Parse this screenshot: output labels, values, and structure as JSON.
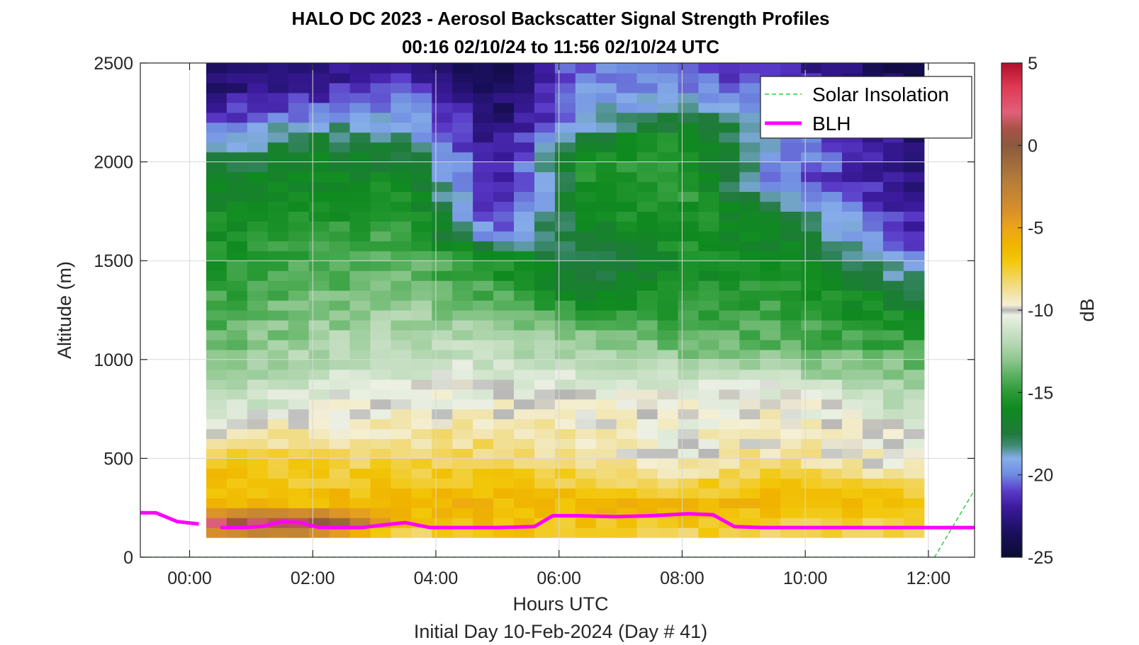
{
  "chart_data": {
    "type": "heatmap",
    "title": "HALO DC 2023 - Aerosol Backscatter Signal Strength Profiles",
    "subtitle": "00:16 02/10/24 to 11:56 02/10/24  UTC",
    "xlabel": "Hours UTC",
    "xlabel2": "Initial Day 10-Feb-2024 (Day # 41)",
    "ylabel": "Altitude (m)",
    "colorbar_label": "dB",
    "xlim": [
      -0.8,
      12.75
    ],
    "ylim": [
      0,
      2500
    ],
    "x_ticks": [
      {
        "value": 0,
        "label": "00:00"
      },
      {
        "value": 2,
        "label": "02:00"
      },
      {
        "value": 4,
        "label": "04:00"
      },
      {
        "value": 6,
        "label": "06:00"
      },
      {
        "value": 8,
        "label": "08:00"
      },
      {
        "value": 10,
        "label": "10:00"
      },
      {
        "value": 12,
        "label": "12:00"
      }
    ],
    "y_ticks": [
      {
        "value": 0,
        "label": "0"
      },
      {
        "value": 500,
        "label": "500"
      },
      {
        "value": 1000,
        "label": "1000"
      },
      {
        "value": 1500,
        "label": "1500"
      },
      {
        "value": 2000,
        "label": "2000"
      },
      {
        "value": 2500,
        "label": "2500"
      }
    ],
    "clim": [
      -25,
      5
    ],
    "c_ticks": [
      {
        "value": 5,
        "label": "5"
      },
      {
        "value": 0,
        "label": "0"
      },
      {
        "value": -5,
        "label": "-5"
      },
      {
        "value": -10,
        "label": "-10"
      },
      {
        "value": -15,
        "label": "-15"
      },
      {
        "value": -20,
        "label": "-20"
      },
      {
        "value": -25,
        "label": "-25"
      }
    ],
    "grid": true,
    "legend_position": "top-right",
    "heatmap_x_range": [
      0.27,
      11.93
    ],
    "heatmap_y_range": [
      100,
      2500
    ],
    "heatmap_columns": 35,
    "heatmap_rows": 48,
    "profile_keypoints": [
      {
        "x": 0.3,
        "points": [
          [
            100,
            -10
          ],
          [
            150,
            4
          ],
          [
            250,
            -6
          ],
          [
            500,
            -7
          ],
          [
            600,
            -9
          ],
          [
            900,
            -13
          ],
          [
            1400,
            -15
          ],
          [
            1800,
            -16
          ],
          [
            2000,
            -18
          ],
          [
            2200,
            -21
          ],
          [
            2500,
            -24
          ]
        ]
      },
      {
        "x": 2.0,
        "points": [
          [
            100,
            -10
          ],
          [
            150,
            3
          ],
          [
            250,
            -6
          ],
          [
            500,
            -8
          ],
          [
            700,
            -10
          ],
          [
            1000,
            -12
          ],
          [
            1400,
            -14
          ],
          [
            1900,
            -16
          ],
          [
            2100,
            -17
          ],
          [
            2300,
            -21
          ],
          [
            2500,
            -23
          ]
        ]
      },
      {
        "x": 3.5,
        "points": [
          [
            100,
            -8
          ],
          [
            250,
            -6
          ],
          [
            500,
            -8
          ],
          [
            800,
            -10
          ],
          [
            1100,
            -12
          ],
          [
            1500,
            -14
          ],
          [
            1800,
            -15
          ],
          [
            2000,
            -17
          ],
          [
            2200,
            -19
          ],
          [
            2500,
            -22
          ]
        ]
      },
      {
        "x": 5.0,
        "points": [
          [
            100,
            -7
          ],
          [
            250,
            -6
          ],
          [
            500,
            -8
          ],
          [
            800,
            -10
          ],
          [
            1100,
            -12
          ],
          [
            1400,
            -15
          ],
          [
            1550,
            -16
          ],
          [
            1600,
            -20
          ],
          [
            1800,
            -22
          ],
          [
            2200,
            -23
          ],
          [
            2500,
            -24
          ]
        ]
      },
      {
        "x": 6.5,
        "points": [
          [
            100,
            -8
          ],
          [
            250,
            -6
          ],
          [
            500,
            -9
          ],
          [
            800,
            -10
          ],
          [
            1100,
            -13
          ],
          [
            1300,
            -16
          ],
          [
            1500,
            -18
          ],
          [
            1700,
            -16
          ],
          [
            2000,
            -15
          ],
          [
            2200,
            -19
          ],
          [
            2500,
            -20
          ]
        ]
      },
      {
        "x": 8.0,
        "points": [
          [
            100,
            -8
          ],
          [
            250,
            -6
          ],
          [
            500,
            -10
          ],
          [
            800,
            -10
          ],
          [
            1100,
            -14
          ],
          [
            1400,
            -16
          ],
          [
            1800,
            -15
          ],
          [
            2100,
            -15
          ],
          [
            2300,
            -19
          ],
          [
            2500,
            -21
          ]
        ]
      },
      {
        "x": 9.5,
        "points": [
          [
            100,
            -8
          ],
          [
            300,
            -6
          ],
          [
            550,
            -9
          ],
          [
            800,
            -10
          ],
          [
            1100,
            -14
          ],
          [
            1400,
            -15
          ],
          [
            1700,
            -17
          ],
          [
            1900,
            -20
          ],
          [
            2200,
            -19
          ],
          [
            2500,
            -22
          ]
        ]
      },
      {
        "x": 11.9,
        "points": [
          [
            100,
            -8
          ],
          [
            300,
            -7
          ],
          [
            450,
            -10
          ],
          [
            700,
            -11
          ],
          [
            1000,
            -14
          ],
          [
            1300,
            -17
          ],
          [
            1500,
            -20
          ],
          [
            1700,
            -22
          ],
          [
            2100,
            -23
          ],
          [
            2500,
            -24
          ]
        ]
      }
    ],
    "series": [
      {
        "name": "Solar Insolation",
        "style": "dashed",
        "color": "#2ecc40",
        "x": [
          -0.8,
          12.1,
          12.75
        ],
        "y": [
          0,
          0,
          340
        ]
      },
      {
        "name": "BLH",
        "style": "solid",
        "color": "#ff00ff",
        "segments": [
          {
            "x": [
              -0.8,
              -0.55,
              -0.2,
              0.15
            ],
            "y": [
              225,
              225,
              180,
              168
            ]
          },
          {
            "x": [
              0.5,
              0.9,
              1.2,
              1.5,
              1.8,
              2.1,
              2.8,
              3.2,
              3.5,
              3.9,
              4.5,
              5.0,
              5.6,
              5.9,
              6.3,
              6.9,
              7.5,
              8.1,
              8.5,
              8.85,
              9.3,
              10.0,
              11.0,
              12.0,
              12.75
            ],
            "y": [
              150,
              150,
              157,
              180,
              176,
              150,
              150,
              165,
              175,
              150,
              150,
              150,
              155,
              210,
              210,
              205,
              210,
              220,
              215,
              155,
              150,
              150,
              150,
              150,
              150
            ]
          }
        ]
      }
    ]
  }
}
